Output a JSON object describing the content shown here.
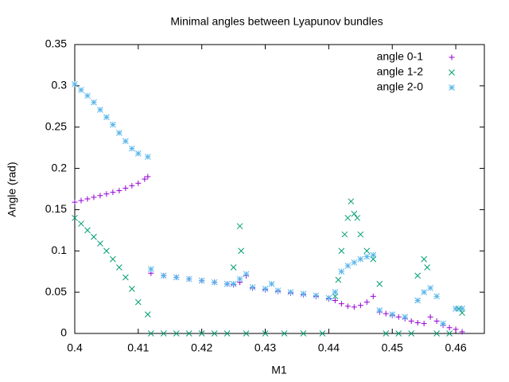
{
  "chart_data": {
    "type": "scatter",
    "title": "Minimal angles between Lyapunov bundles",
    "x_label": "M1",
    "y_label": "Angle (rad)",
    "xlim": [
      0.4,
      0.4645
    ],
    "ylim": [
      0,
      0.35
    ],
    "xticks": [
      0.4,
      0.41,
      0.42,
      0.43,
      0.44,
      0.45,
      0.46
    ],
    "yticks": [
      0,
      0.05,
      0.1,
      0.15,
      0.2,
      0.25,
      0.3,
      0.35
    ],
    "legend": "top-right",
    "series": [
      {
        "name": "angle 0-1",
        "color": "#9400d3",
        "marker": "plus",
        "x": [
          0.4,
          0.401,
          0.402,
          0.403,
          0.404,
          0.405,
          0.406,
          0.407,
          0.408,
          0.409,
          0.41,
          0.411,
          0.4115,
          0.412,
          0.414,
          0.416,
          0.418,
          0.42,
          0.422,
          0.424,
          0.425,
          0.426,
          0.427,
          0.428,
          0.43,
          0.432,
          0.434,
          0.436,
          0.438,
          0.44,
          0.441,
          0.442,
          0.443,
          0.444,
          0.445,
          0.446,
          0.447,
          0.448,
          0.449,
          0.45,
          0.451,
          0.452,
          0.453,
          0.454,
          0.455,
          0.456,
          0.457,
          0.458,
          0.459,
          0.46,
          0.461
        ],
        "values": [
          0.159,
          0.161,
          0.163,
          0.165,
          0.167,
          0.169,
          0.171,
          0.173,
          0.176,
          0.179,
          0.182,
          0.187,
          0.19,
          0.073,
          0.07,
          0.068,
          0.066,
          0.064,
          0.062,
          0.06,
          0.059,
          0.062,
          0.07,
          0.055,
          0.053,
          0.051,
          0.049,
          0.047,
          0.045,
          0.042,
          0.04,
          0.036,
          0.033,
          0.032,
          0.034,
          0.038,
          0.045,
          0.026,
          0.024,
          0.022,
          0.02,
          0.018,
          0.015,
          0.013,
          0.012,
          0.02,
          0.015,
          0.01,
          0.007,
          0.005,
          0.002
        ]
      },
      {
        "name": "angle 1-2",
        "color": "#009e73",
        "marker": "cross",
        "x": [
          0.4,
          0.401,
          0.402,
          0.403,
          0.404,
          0.405,
          0.406,
          0.407,
          0.408,
          0.409,
          0.41,
          0.4115,
          0.412,
          0.414,
          0.416,
          0.418,
          0.42,
          0.422,
          0.424,
          0.425,
          0.426,
          0.4262,
          0.427,
          0.43,
          0.433,
          0.436,
          0.439,
          0.441,
          0.4415,
          0.442,
          0.4425,
          0.443,
          0.4435,
          0.444,
          0.4445,
          0.445,
          0.446,
          0.447,
          0.448,
          0.449,
          0.451,
          0.453,
          0.454,
          0.455,
          0.4555,
          0.457,
          0.459,
          0.4605,
          0.461
        ],
        "values": [
          0.14,
          0.133,
          0.125,
          0.117,
          0.109,
          0.1,
          0.09,
          0.08,
          0.068,
          0.054,
          0.038,
          0.023,
          0,
          0,
          0,
          0,
          0,
          0,
          0,
          0.08,
          0.13,
          0.1,
          0,
          0,
          0,
          0,
          0,
          0.045,
          0.065,
          0.1,
          0.12,
          0.14,
          0.16,
          0.145,
          0.14,
          0.12,
          0.1,
          0.09,
          0.06,
          0,
          0,
          0,
          0.07,
          0.09,
          0.08,
          0,
          0,
          0.03,
          0.025
        ]
      },
      {
        "name": "angle 2-0",
        "color": "#56b4e9",
        "marker": "star",
        "x": [
          0.4,
          0.401,
          0.402,
          0.403,
          0.404,
          0.405,
          0.406,
          0.407,
          0.408,
          0.409,
          0.41,
          0.4115,
          0.412,
          0.414,
          0.416,
          0.418,
          0.42,
          0.422,
          0.424,
          0.425,
          0.426,
          0.427,
          0.428,
          0.43,
          0.431,
          0.432,
          0.434,
          0.436,
          0.438,
          0.44,
          0.441,
          0.442,
          0.443,
          0.444,
          0.445,
          0.446,
          0.447,
          0.448,
          0.45,
          0.452,
          0.454,
          0.455,
          0.456,
          0.457,
          0.458,
          0.46,
          0.461
        ],
        "values": [
          0.302,
          0.295,
          0.288,
          0.28,
          0.271,
          0.262,
          0.253,
          0.243,
          0.233,
          0.224,
          0.218,
          0.214,
          0.078,
          0.07,
          0.068,
          0.066,
          0.064,
          0.062,
          0.06,
          0.06,
          0.066,
          0.072,
          0.056,
          0.054,
          0.06,
          0.052,
          0.05,
          0.048,
          0.046,
          0.043,
          0.05,
          0.075,
          0.082,
          0.086,
          0.09,
          0.093,
          0.095,
          0.028,
          0.023,
          0.02,
          0.04,
          0.05,
          0.055,
          0.045,
          0.012,
          0.03,
          0.03
        ]
      }
    ]
  }
}
